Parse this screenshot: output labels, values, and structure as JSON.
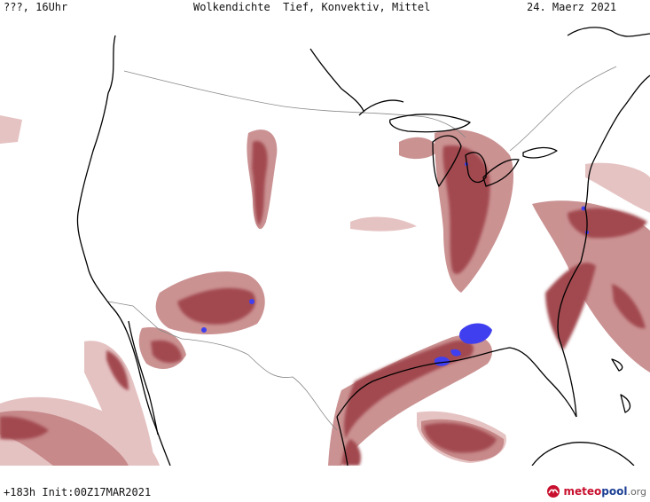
{
  "header": {
    "left": "???, 16Uhr",
    "title": "Wolkendichte  Tief, Konvektiv, Mittel",
    "date": "24. Maerz 2021"
  },
  "footer": {
    "run": "+183h Init:00Z17MAR2021",
    "logo_part1": "meteo",
    "logo_part2": "pool",
    "logo_part3": ".org"
  },
  "colors": {
    "cloud_dark": "#a24a4f",
    "cloud_mid": "#c27f80",
    "cloud_light": "#e3bcbc",
    "convective": "#3f3ff0",
    "coast": "#000000",
    "border": "#888888"
  }
}
